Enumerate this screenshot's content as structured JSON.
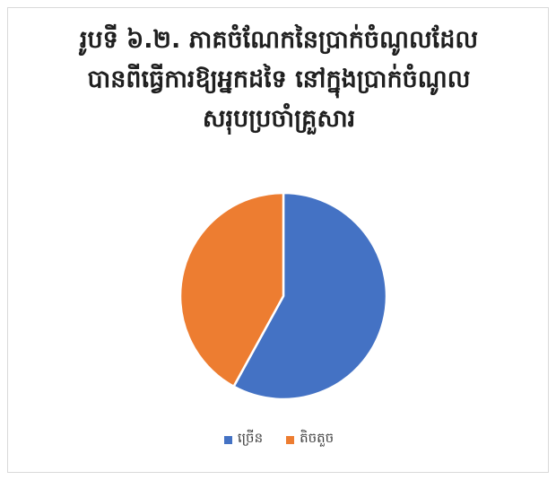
{
  "chart_data": {
    "type": "pie",
    "title_lines": [
      "រូបទី ៦.២. ភាគចំណែកនៃប្រាក់ចំណូលដែល",
      "បានពីធ្វើការឱ្យអ្នកដទៃ នៅក្នុងប្រាក់ចំណូល",
      "សរុបប្រចាំគ្រួសារ"
    ],
    "categories": [
      "ច្រើន",
      "តិចតួច"
    ],
    "values": [
      58,
      42
    ],
    "colors": [
      "#4472C4",
      "#ED7D31"
    ],
    "start_angle_deg": 0,
    "direction": "clockwise",
    "legend_position": "bottom"
  }
}
